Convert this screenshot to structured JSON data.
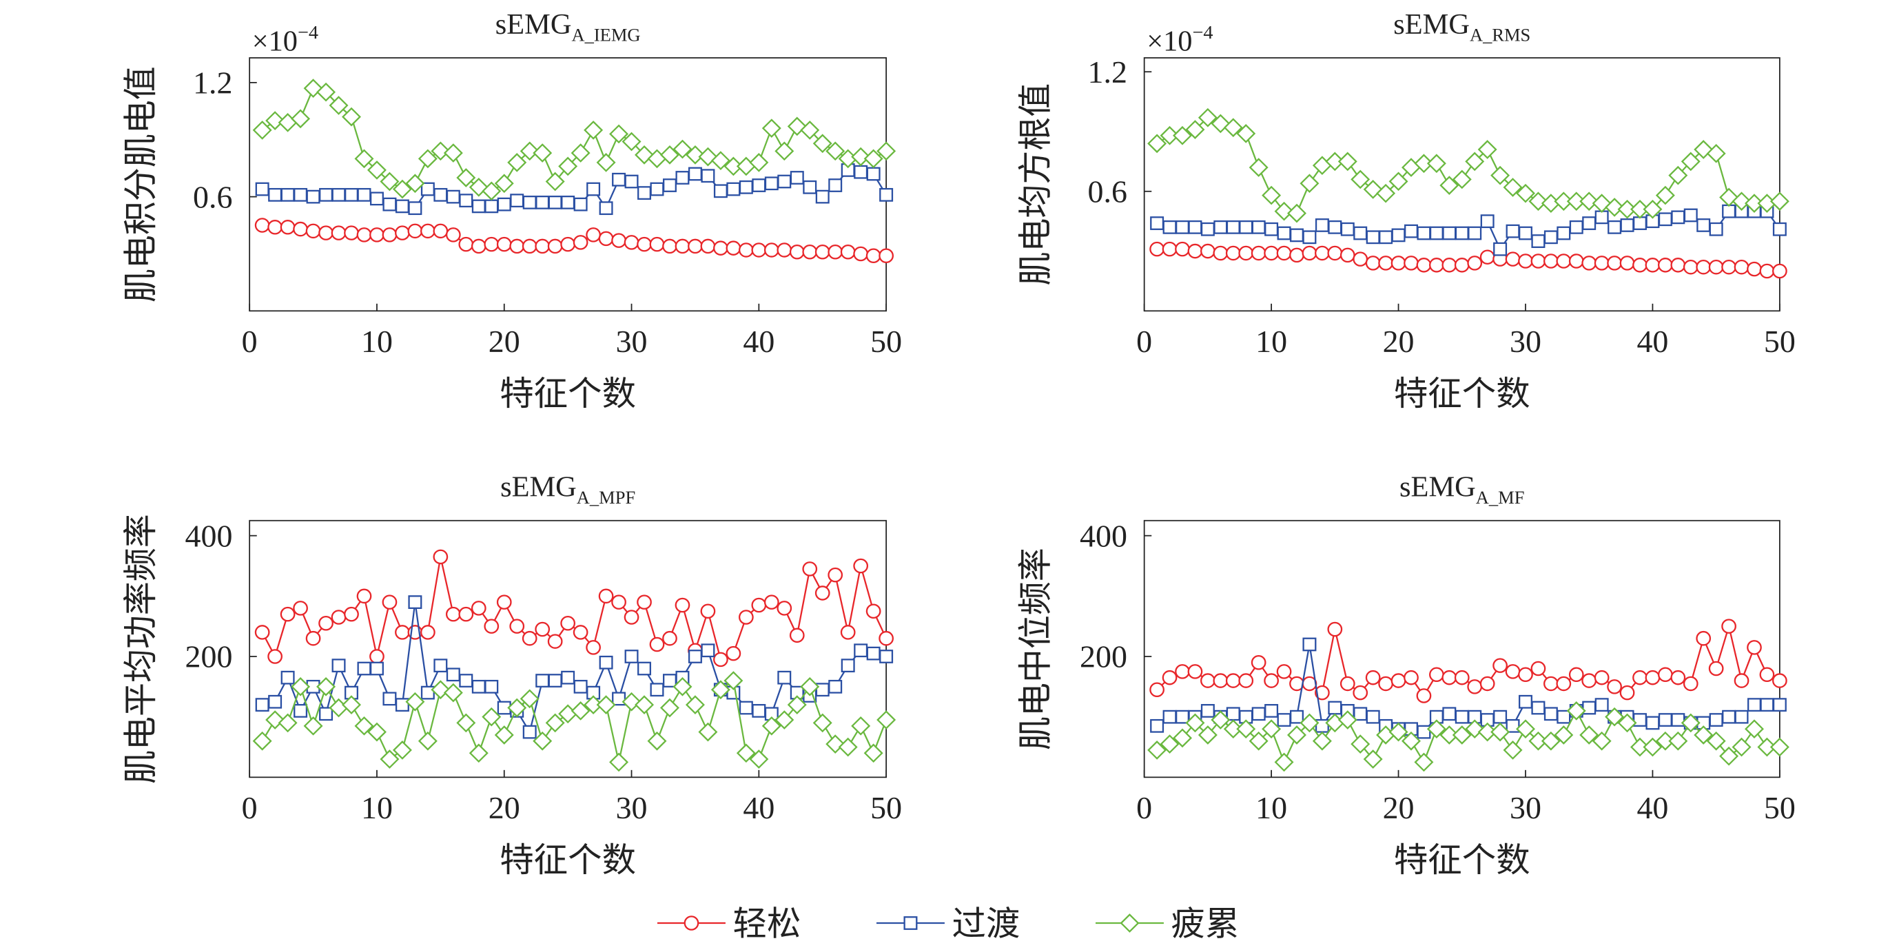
{
  "legend": {
    "entries": [
      {
        "name": "轻松",
        "color": "#e8262a",
        "marker": "circle"
      },
      {
        "name": "过渡",
        "color": "#2a4fa3",
        "marker": "square"
      },
      {
        "name": "疲累",
        "color": "#6ab83f",
        "marker": "diamond"
      }
    ]
  },
  "chart_data": [
    {
      "type": "line",
      "title": "sEMG",
      "title_subscript": "A_IEMG",
      "axis_multiplier": {
        "base": "×10",
        "exponent": "−4"
      },
      "xlabel": "特征个数",
      "ylabel": "肌电积分肌电值",
      "xlim": [
        0,
        50
      ],
      "xticks": [
        0,
        10,
        20,
        30,
        40,
        50
      ],
      "ylim": [
        0,
        1.33
      ],
      "yticks": [
        0.6,
        1.2
      ],
      "x": [
        1,
        2,
        3,
        4,
        5,
        6,
        7,
        8,
        9,
        10,
        11,
        12,
        13,
        14,
        15,
        16,
        17,
        18,
        19,
        20,
        21,
        22,
        23,
        24,
        25,
        26,
        27,
        28,
        29,
        30,
        31,
        32,
        33,
        34,
        35,
        36,
        37,
        38,
        39,
        40,
        41,
        42,
        43,
        44,
        45,
        46,
        47,
        48,
        49,
        50
      ],
      "series": [
        {
          "values": [
            0.45,
            0.44,
            0.44,
            0.43,
            0.42,
            0.41,
            0.41,
            0.41,
            0.4,
            0.4,
            0.4,
            0.41,
            0.42,
            0.42,
            0.42,
            0.4,
            0.35,
            0.34,
            0.35,
            0.35,
            0.34,
            0.34,
            0.34,
            0.34,
            0.35,
            0.36,
            0.4,
            0.38,
            0.37,
            0.36,
            0.35,
            0.35,
            0.34,
            0.34,
            0.34,
            0.34,
            0.33,
            0.33,
            0.32,
            0.32,
            0.32,
            0.32,
            0.31,
            0.31,
            0.31,
            0.31,
            0.31,
            0.3,
            0.29,
            0.29
          ]
        },
        {
          "values": [
            0.64,
            0.61,
            0.61,
            0.61,
            0.6,
            0.61,
            0.61,
            0.61,
            0.61,
            0.59,
            0.56,
            0.55,
            0.54,
            0.64,
            0.61,
            0.6,
            0.58,
            0.55,
            0.55,
            0.56,
            0.58,
            0.57,
            0.57,
            0.57,
            0.57,
            0.56,
            0.64,
            0.54,
            0.69,
            0.68,
            0.62,
            0.64,
            0.66,
            0.7,
            0.72,
            0.71,
            0.63,
            0.64,
            0.65,
            0.66,
            0.67,
            0.68,
            0.7,
            0.65,
            0.6,
            0.66,
            0.74,
            0.73,
            0.72,
            0.61
          ]
        },
        {
          "values": [
            0.95,
            1.0,
            0.99,
            1.01,
            1.17,
            1.15,
            1.08,
            1.02,
            0.8,
            0.74,
            0.68,
            0.64,
            0.67,
            0.8,
            0.84,
            0.83,
            0.7,
            0.65,
            0.63,
            0.67,
            0.78,
            0.84,
            0.83,
            0.68,
            0.76,
            0.83,
            0.95,
            0.78,
            0.93,
            0.89,
            0.82,
            0.8,
            0.82,
            0.85,
            0.82,
            0.81,
            0.79,
            0.76,
            0.76,
            0.78,
            0.96,
            0.84,
            0.97,
            0.95,
            0.88,
            0.84,
            0.8,
            0.81,
            0.8,
            0.84
          ]
        }
      ]
    },
    {
      "type": "line",
      "title": "sEMG",
      "title_subscript": "A_RMS",
      "axis_multiplier": {
        "base": "×10",
        "exponent": "−4"
      },
      "xlabel": "特征个数",
      "ylabel": "肌电均方根值",
      "xlim": [
        0,
        50
      ],
      "xticks": [
        0,
        10,
        20,
        30,
        40,
        50
      ],
      "ylim": [
        0,
        1.27
      ],
      "yticks": [
        0.6,
        1.2
      ],
      "x": [
        1,
        2,
        3,
        4,
        5,
        6,
        7,
        8,
        9,
        10,
        11,
        12,
        13,
        14,
        15,
        16,
        17,
        18,
        19,
        20,
        21,
        22,
        23,
        24,
        25,
        26,
        27,
        28,
        29,
        30,
        31,
        32,
        33,
        34,
        35,
        36,
        37,
        38,
        39,
        40,
        41,
        42,
        43,
        44,
        45,
        46,
        47,
        48,
        49,
        50
      ],
      "series": [
        {
          "values": [
            0.31,
            0.31,
            0.31,
            0.3,
            0.3,
            0.29,
            0.29,
            0.29,
            0.29,
            0.29,
            0.29,
            0.28,
            0.29,
            0.29,
            0.29,
            0.28,
            0.26,
            0.24,
            0.24,
            0.24,
            0.24,
            0.23,
            0.23,
            0.23,
            0.23,
            0.24,
            0.27,
            0.26,
            0.26,
            0.25,
            0.25,
            0.25,
            0.25,
            0.25,
            0.24,
            0.24,
            0.24,
            0.24,
            0.23,
            0.23,
            0.23,
            0.23,
            0.22,
            0.22,
            0.22,
            0.22,
            0.22,
            0.21,
            0.2,
            0.2
          ]
        },
        {
          "values": [
            0.44,
            0.42,
            0.42,
            0.42,
            0.41,
            0.42,
            0.42,
            0.42,
            0.42,
            0.41,
            0.39,
            0.38,
            0.37,
            0.43,
            0.42,
            0.41,
            0.39,
            0.37,
            0.37,
            0.38,
            0.4,
            0.39,
            0.39,
            0.39,
            0.39,
            0.39,
            0.45,
            0.31,
            0.4,
            0.39,
            0.35,
            0.37,
            0.39,
            0.42,
            0.44,
            0.47,
            0.42,
            0.43,
            0.44,
            0.45,
            0.46,
            0.47,
            0.48,
            0.43,
            0.41,
            0.5,
            0.5,
            0.5,
            0.5,
            0.41
          ]
        },
        {
          "values": [
            0.84,
            0.88,
            0.88,
            0.91,
            0.97,
            0.94,
            0.92,
            0.89,
            0.72,
            0.58,
            0.5,
            0.49,
            0.64,
            0.73,
            0.75,
            0.75,
            0.66,
            0.61,
            0.59,
            0.65,
            0.72,
            0.74,
            0.74,
            0.63,
            0.66,
            0.75,
            0.81,
            0.68,
            0.62,
            0.59,
            0.55,
            0.54,
            0.55,
            0.55,
            0.55,
            0.54,
            0.52,
            0.51,
            0.51,
            0.51,
            0.58,
            0.68,
            0.75,
            0.81,
            0.79,
            0.57,
            0.55,
            0.54,
            0.54,
            0.55
          ]
        }
      ]
    },
    {
      "type": "line",
      "title": "sEMG",
      "title_subscript": "A_MPF",
      "xlabel": "特征个数",
      "ylabel": "肌电平均功率频率",
      "xlim": [
        0,
        50
      ],
      "xticks": [
        0,
        10,
        20,
        30,
        40,
        50
      ],
      "ylim": [
        0,
        425
      ],
      "yticks": [
        200,
        400
      ],
      "x": [
        1,
        2,
        3,
        4,
        5,
        6,
        7,
        8,
        9,
        10,
        11,
        12,
        13,
        14,
        15,
        16,
        17,
        18,
        19,
        20,
        21,
        22,
        23,
        24,
        25,
        26,
        27,
        28,
        29,
        30,
        31,
        32,
        33,
        34,
        35,
        36,
        37,
        38,
        39,
        40,
        41,
        42,
        43,
        44,
        45,
        46,
        47,
        48,
        49,
        50
      ],
      "series": [
        {
          "values": [
            240,
            200,
            270,
            280,
            230,
            255,
            265,
            270,
            300,
            200,
            290,
            240,
            240,
            240,
            365,
            270,
            270,
            280,
            250,
            290,
            250,
            230,
            245,
            225,
            255,
            240,
            215,
            300,
            290,
            265,
            290,
            220,
            230,
            285,
            210,
            275,
            195,
            205,
            265,
            285,
            290,
            280,
            235,
            345,
            305,
            335,
            240,
            350,
            275,
            230
          ]
        },
        {
          "values": [
            120,
            125,
            165,
            110,
            150,
            105,
            185,
            140,
            180,
            180,
            130,
            120,
            290,
            140,
            185,
            170,
            160,
            150,
            150,
            115,
            110,
            75,
            160,
            160,
            165,
            150,
            140,
            190,
            130,
            200,
            180,
            145,
            160,
            165,
            200,
            210,
            145,
            140,
            115,
            110,
            105,
            165,
            140,
            135,
            145,
            150,
            185,
            210,
            205,
            200
          ]
        },
        {
          "values": [
            60,
            95,
            90,
            150,
            85,
            150,
            115,
            120,
            85,
            75,
            30,
            45,
            125,
            60,
            145,
            140,
            90,
            40,
            100,
            70,
            115,
            130,
            60,
            90,
            105,
            110,
            120,
            120,
            25,
            125,
            120,
            60,
            115,
            150,
            120,
            75,
            145,
            160,
            40,
            30,
            85,
            95,
            120,
            150,
            90,
            55,
            50,
            85,
            40,
            95
          ]
        }
      ]
    },
    {
      "type": "line",
      "title": "sEMG",
      "title_subscript": "A_MF",
      "xlabel": "特征个数",
      "ylabel": "肌电中位频率",
      "xlim": [
        0,
        50
      ],
      "xticks": [
        0,
        10,
        20,
        30,
        40,
        50
      ],
      "ylim": [
        0,
        425
      ],
      "yticks": [
        200,
        400
      ],
      "x": [
        1,
        2,
        3,
        4,
        5,
        6,
        7,
        8,
        9,
        10,
        11,
        12,
        13,
        14,
        15,
        16,
        17,
        18,
        19,
        20,
        21,
        22,
        23,
        24,
        25,
        26,
        27,
        28,
        29,
        30,
        31,
        32,
        33,
        34,
        35,
        36,
        37,
        38,
        39,
        40,
        41,
        42,
        43,
        44,
        45,
        46,
        47,
        48,
        49,
        50
      ],
      "series": [
        {
          "values": [
            145,
            165,
            175,
            175,
            160,
            160,
            160,
            160,
            190,
            160,
            175,
            155,
            155,
            140,
            245,
            155,
            140,
            165,
            155,
            160,
            165,
            135,
            170,
            165,
            165,
            150,
            155,
            185,
            175,
            170,
            180,
            155,
            155,
            170,
            160,
            165,
            150,
            140,
            165,
            165,
            170,
            165,
            155,
            230,
            180,
            250,
            160,
            215,
            170,
            160
          ]
        },
        {
          "values": [
            85,
            100,
            100,
            100,
            110,
            100,
            105,
            100,
            105,
            110,
            95,
            100,
            220,
            85,
            115,
            110,
            105,
            100,
            85,
            80,
            80,
            75,
            100,
            105,
            100,
            100,
            95,
            100,
            85,
            125,
            115,
            105,
            100,
            110,
            115,
            120,
            100,
            100,
            95,
            90,
            95,
            95,
            90,
            90,
            95,
            100,
            100,
            120,
            120,
            120
          ]
        },
        {
          "values": [
            45,
            55,
            65,
            90,
            70,
            95,
            80,
            80,
            60,
            80,
            25,
            70,
            90,
            60,
            90,
            95,
            55,
            30,
            70,
            75,
            60,
            25,
            80,
            70,
            70,
            80,
            75,
            75,
            45,
            80,
            60,
            60,
            70,
            110,
            70,
            60,
            100,
            90,
            50,
            50,
            60,
            60,
            90,
            70,
            60,
            35,
            50,
            80,
            50,
            50
          ]
        }
      ]
    }
  ]
}
